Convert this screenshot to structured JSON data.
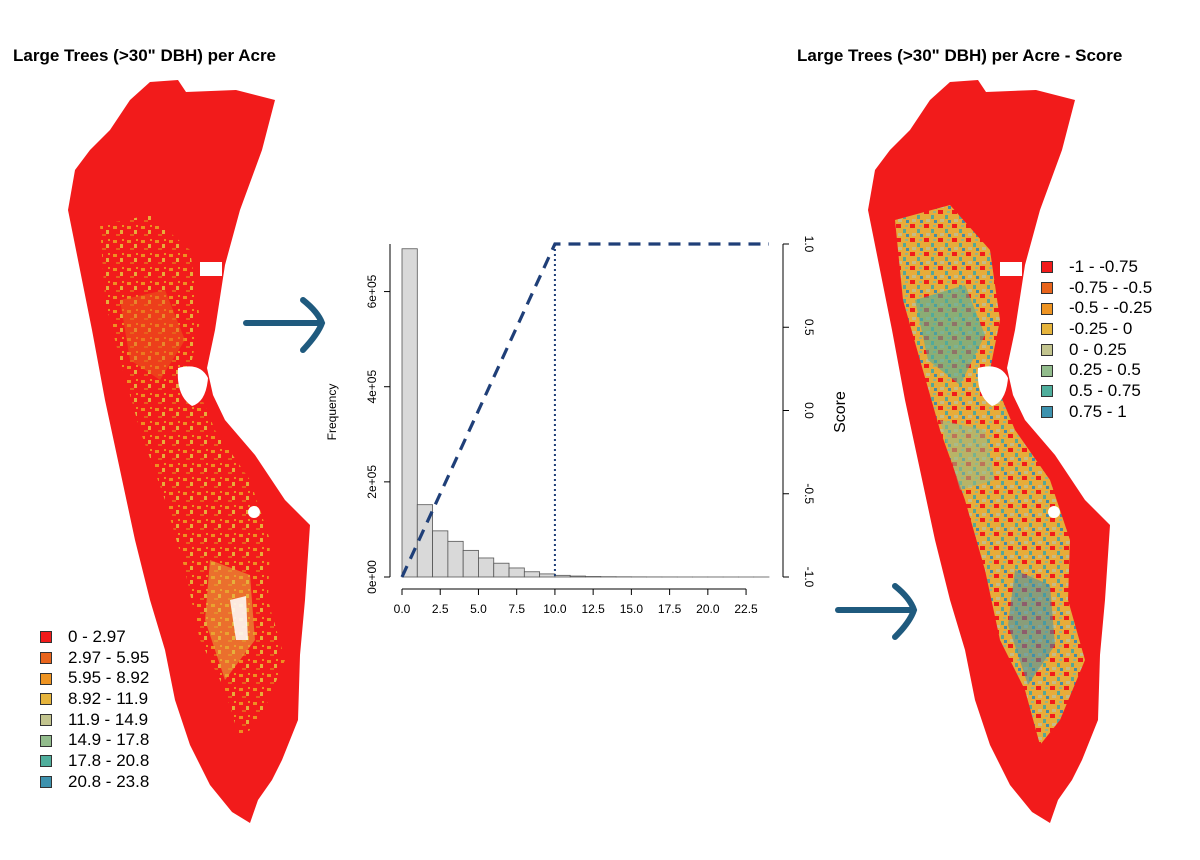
{
  "panels": {
    "left_title": "Large Trees (>30\" DBH) per Acre",
    "right_title": "Large Trees (>30\" DBH) per Acre - Score"
  },
  "legends": {
    "left": [
      {
        "label": "0 - 2.97",
        "color": "#f21b1b"
      },
      {
        "label": "2.97 - 5.95",
        "color": "#e8641c"
      },
      {
        "label": "5.95 - 8.92",
        "color": "#ee9422"
      },
      {
        "label": "8.92 - 11.9",
        "color": "#e6b43c"
      },
      {
        "label": "11.9 - 14.9",
        "color": "#c2c48e"
      },
      {
        "label": "14.9 - 17.8",
        "color": "#92bc8c"
      },
      {
        "label": "17.8 - 20.8",
        "color": "#4fae9c"
      },
      {
        "label": "20.8 - 23.8",
        "color": "#3d92ae"
      }
    ],
    "right": [
      {
        "label": "-1 - -0.75",
        "color": "#f21b1b"
      },
      {
        "label": "-0.75 - -0.5",
        "color": "#e8641c"
      },
      {
        "label": "-0.5 - -0.25",
        "color": "#ee9422"
      },
      {
        "label": "-0.25 - 0",
        "color": "#e6b43c"
      },
      {
        "label": "0 - 0.25",
        "color": "#c2c48e"
      },
      {
        "label": "0.25 - 0.5",
        "color": "#92bc8c"
      },
      {
        "label": "0.5 - 0.75",
        "color": "#4fae9c"
      },
      {
        "label": "0.75 - 1",
        "color": "#3d92ae"
      }
    ]
  },
  "arrow_color": "#1f5a7e",
  "chart_data": {
    "type": "bar",
    "ylabel": "Frequency",
    "y2label": "Score",
    "xlim": [
      0,
      24
    ],
    "ylim": [
      0,
      700000
    ],
    "y2lim": [
      -1,
      1
    ],
    "xticks": [
      "0.0",
      "2.5",
      "5.0",
      "7.5",
      "10.0",
      "12.5",
      "15.0",
      "17.5",
      "20.0",
      "22.5"
    ],
    "xtick_values": [
      0,
      2.5,
      5,
      7.5,
      10,
      12.5,
      15,
      17.5,
      20,
      22.5
    ],
    "yticks": [
      "0e+00",
      "2e+05",
      "4e+05",
      "6e+05"
    ],
    "ytick_values": [
      0,
      200000,
      400000,
      600000
    ],
    "y2ticks": [
      "-1.0",
      "-0.5",
      "0.0",
      "0.5",
      "1.0"
    ],
    "y2tick_values": [
      -1,
      -0.5,
      0,
      0.5,
      1
    ],
    "bin_width": 1,
    "bins": [
      {
        "x0": 0,
        "count": 690000
      },
      {
        "x0": 1,
        "count": 152000
      },
      {
        "x0": 2,
        "count": 97000
      },
      {
        "x0": 3,
        "count": 75000
      },
      {
        "x0": 4,
        "count": 56000
      },
      {
        "x0": 5,
        "count": 40000
      },
      {
        "x0": 6,
        "count": 29000
      },
      {
        "x0": 7,
        "count": 19000
      },
      {
        "x0": 8,
        "count": 11000
      },
      {
        "x0": 9,
        "count": 6500
      },
      {
        "x0": 10,
        "count": 3500
      },
      {
        "x0": 11,
        "count": 2000
      },
      {
        "x0": 12,
        "count": 1000
      },
      {
        "x0": 13,
        "count": 600
      },
      {
        "x0": 14,
        "count": 400
      },
      {
        "x0": 15,
        "count": 250
      },
      {
        "x0": 16,
        "count": 150
      },
      {
        "x0": 17,
        "count": 100
      },
      {
        "x0": 18,
        "count": 60
      },
      {
        "x0": 19,
        "count": 40
      },
      {
        "x0": 20,
        "count": 30
      },
      {
        "x0": 21,
        "count": 20
      },
      {
        "x0": 22,
        "count": 10
      },
      {
        "x0": 23,
        "count": 5
      }
    ],
    "score_curve": {
      "x": [
        0,
        10,
        24
      ],
      "y": [
        -1,
        1,
        1
      ],
      "color": "#1f3f78"
    },
    "threshold_x": 10,
    "bar_fill": "#d9d9d9"
  }
}
